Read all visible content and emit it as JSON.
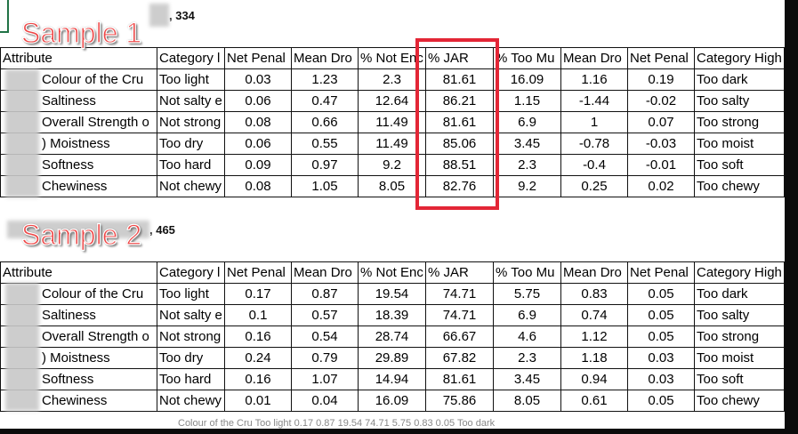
{
  "labels": {
    "sample1": "Sample 1",
    "sample2": "Sample 2",
    "sample1_code_tail": ", 334",
    "sample2_code_tail": ", 465"
  },
  "headers": [
    "Attribute",
    "Category l",
    "Net Penal",
    "Mean Dro",
    "% Not Enc",
    "% JAR",
    "% Too Mu",
    "Mean Dro",
    "Net Penal",
    "Category High"
  ],
  "attributes": [
    "Colour of the Cru",
    "Saltiness",
    "Overall Strength o",
    ") Moistness",
    "Softness",
    "Chewiness"
  ],
  "sample1_rows": [
    [
      "Too light",
      "0.03",
      "1.23",
      "2.3",
      "81.61",
      "16.09",
      "1.16",
      "0.19",
      "Too dark"
    ],
    [
      "Not salty e",
      "0.06",
      "0.47",
      "12.64",
      "86.21",
      "1.15",
      "-1.44",
      "-0.02",
      "Too salty"
    ],
    [
      "Not strong",
      "0.08",
      "0.66",
      "11.49",
      "81.61",
      "6.9",
      "1",
      "0.07",
      "Too strong"
    ],
    [
      "Too dry",
      "0.06",
      "0.55",
      "11.49",
      "85.06",
      "3.45",
      "-0.78",
      "-0.03",
      "Too moist"
    ],
    [
      "Too hard",
      "0.09",
      "0.97",
      "9.2",
      "88.51",
      "2.3",
      "-0.4",
      "-0.01",
      "Too soft"
    ],
    [
      "Not chewy",
      "0.08",
      "1.05",
      "8.05",
      "82.76",
      "9.2",
      "0.25",
      "0.02",
      "Too chewy"
    ]
  ],
  "sample2_rows": [
    [
      "Too light",
      "0.17",
      "0.87",
      "19.54",
      "74.71",
      "5.75",
      "0.83",
      "0.05",
      "Too dark"
    ],
    [
      "Not salty e",
      "0.1",
      "0.57",
      "18.39",
      "74.71",
      "6.9",
      "0.74",
      "0.05",
      "Too salty"
    ],
    [
      "Not strong",
      "0.16",
      "0.54",
      "28.74",
      "66.67",
      "4.6",
      "1.12",
      "0.05",
      "Too strong"
    ],
    [
      "Too dry",
      "0.24",
      "0.79",
      "29.89",
      "67.82",
      "2.3",
      "1.18",
      "0.03",
      "Too moist"
    ],
    [
      "Too hard",
      "0.16",
      "1.07",
      "14.94",
      "81.61",
      "3.45",
      "0.94",
      "0.03",
      "Too soft"
    ],
    [
      "Not chewy",
      "0.01",
      "0.04",
      "16.09",
      "75.86",
      "8.05",
      "0.61",
      "0.05",
      "Too chewy"
    ]
  ],
  "ghost_row_text": "Colour of the Cru  Too light  0.17  0.87  19.54  74.71  5.75  0.83  0.05  Too dark",
  "colors": {
    "highlight": "#e32636",
    "label_red": "#ee4747",
    "excel_green": "#217346"
  }
}
